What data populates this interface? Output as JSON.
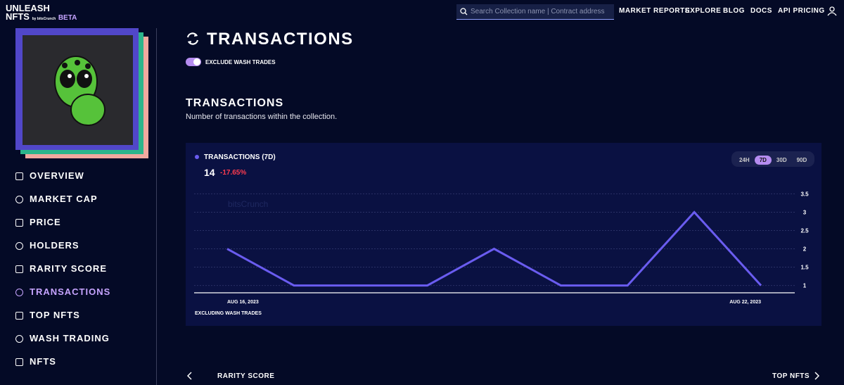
{
  "header": {
    "logo_top": "UNLEASH",
    "logo_bottom": "NFTS",
    "logo_by": "by bitsCrunch",
    "beta": "BETA",
    "search_placeholder": "Search Collection name | Contract address",
    "nav": [
      "MARKET REPORTS",
      "EXPLORE",
      "BLOG",
      "DOCS",
      "API PRICING"
    ]
  },
  "sidebar": {
    "menu": [
      "OVERVIEW",
      "MARKET CAP",
      "PRICE",
      "HOLDERS",
      "RARITY SCORE",
      "TRANSACTIONS",
      "TOP NFTS",
      "WASH TRADING",
      "NFTS"
    ]
  },
  "page": {
    "title": "TRANSACTIONS",
    "toggle_label": "EXCLUDE WASH TRADES"
  },
  "section": {
    "title": "TRANSACTIONS",
    "subtitle": "Number of transactions within the collection."
  },
  "card": {
    "current": "14",
    "change": "-17.65%",
    "periods": [
      "24H",
      "7D",
      "30D",
      "90D"
    ],
    "watermark": "bitsCrunch",
    "footnote": "EXCLUDING WASH TRADES"
  },
  "chart_data": {
    "type": "line",
    "title": "TRANSACTIONS (7D)",
    "categories": [
      "AUG 16, 2023",
      null,
      null,
      null,
      null,
      null,
      null,
      null,
      "AUG 22, 2023"
    ],
    "series": [
      {
        "name": "TRANSACTIONS (7D)",
        "color": "#6a5cf0",
        "values": [
          2,
          1,
          1,
          1,
          2,
          1,
          1,
          3,
          1
        ]
      }
    ],
    "ylim": [
      0.8,
      3.7
    ],
    "yticks": [
      1,
      1.5,
      2,
      2.5,
      3,
      3.5
    ],
    "grid": true
  },
  "footer_nav": {
    "prev": "RARITY SCORE",
    "next": "TOP NFTS"
  }
}
